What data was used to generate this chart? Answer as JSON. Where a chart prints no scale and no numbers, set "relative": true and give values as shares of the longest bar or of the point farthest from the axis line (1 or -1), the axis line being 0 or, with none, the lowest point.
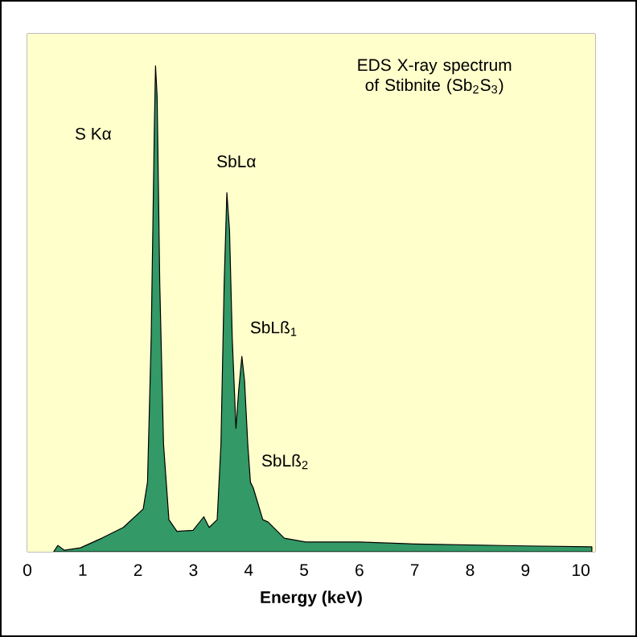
{
  "chart_data": {
    "type": "area",
    "relative": true,
    "title": "EDS X-ray spectrum of Stibnite (Sb$_{2}$S$_{3}$)",
    "xlabel": "Energy (keV)",
    "color": "#339966",
    "x": [
      0.475,
      0.552,
      0.669,
      0.959,
      1.347,
      1.734,
      2.093,
      2.171,
      2.238,
      2.296,
      2.316,
      2.345,
      2.393,
      2.461,
      2.558,
      2.703,
      2.994,
      3.188,
      3.285,
      3.43,
      3.498,
      3.556,
      3.605,
      3.653,
      3.702,
      3.769,
      3.818,
      3.876,
      3.924,
      3.983,
      4.031,
      4.08,
      4.138,
      4.254,
      4.351,
      4.642,
      5.029,
      6.0,
      7.0,
      8.0,
      9.0,
      10.2
    ],
    "values": [
      0.0,
      0.013,
      0.003,
      0.008,
      0.028,
      0.05,
      0.088,
      0.143,
      0.441,
      0.882,
      1.0,
      0.937,
      0.551,
      0.221,
      0.066,
      0.042,
      0.044,
      0.072,
      0.05,
      0.066,
      0.221,
      0.551,
      0.739,
      0.662,
      0.441,
      0.254,
      0.331,
      0.402,
      0.353,
      0.221,
      0.143,
      0.132,
      0.11,
      0.066,
      0.061,
      0.028,
      0.02,
      0.02,
      0.016,
      0.014,
      0.012,
      0.01
    ],
    "xlim": [
      0,
      10.26
    ],
    "xticks": [
      0,
      1,
      2,
      3,
      4,
      5,
      6,
      7,
      8,
      9,
      10
    ],
    "annotations": [
      "S Kα",
      "SbLα",
      "SbLß$_{1}$",
      "SbLß$_{2}$"
    ]
  }
}
